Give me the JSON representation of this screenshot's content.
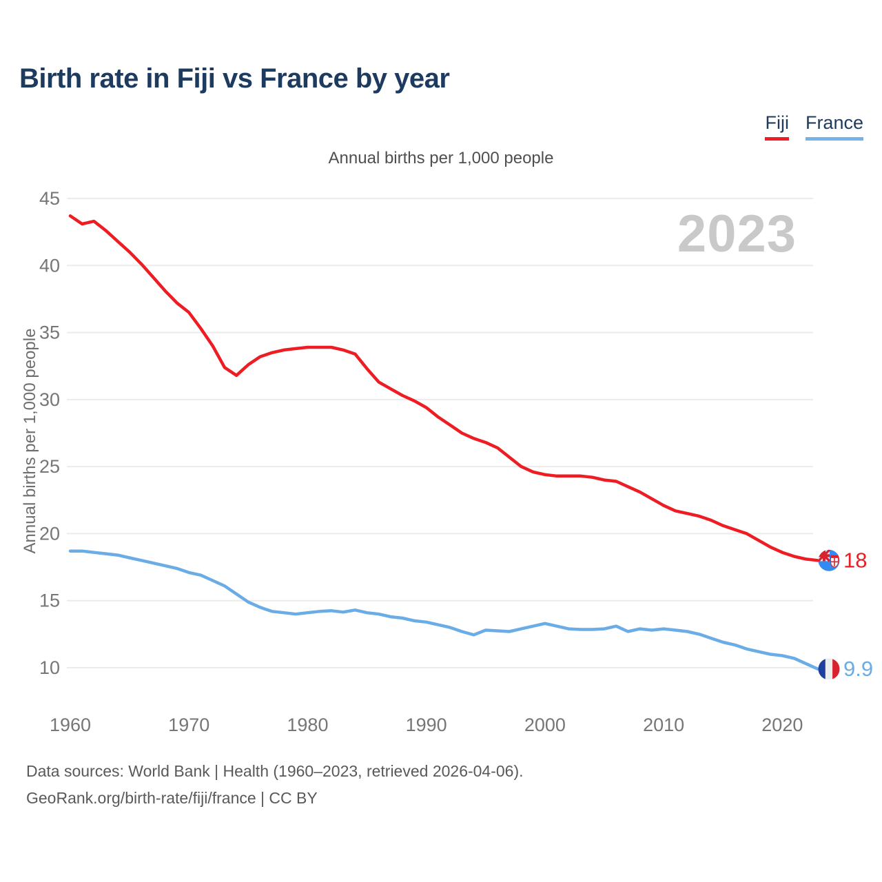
{
  "header": {
    "title": "Birth rate in Fiji vs France by year"
  },
  "legend": {
    "items": [
      {
        "label": "Fiji",
        "color": "#ee1c23"
      },
      {
        "label": "France",
        "color": "#74b3ea"
      }
    ]
  },
  "watermark": {
    "year": "2023"
  },
  "chart_data": {
    "type": "line",
    "title": "Birth rate in Fiji vs France by year",
    "subtitle": "Annual births per 1,000 people",
    "ylabel": "Annual births per 1,000 people",
    "xlabel": "",
    "grid": "horizontal",
    "legend_position": "top-right",
    "xlim": [
      1960,
      2023
    ],
    "ylim": [
      10,
      45
    ],
    "xticks": [
      1960,
      1970,
      1980,
      1990,
      2000,
      2010,
      2020
    ],
    "yticks": [
      10,
      15,
      20,
      25,
      30,
      35,
      40,
      45
    ],
    "x": [
      1960,
      1961,
      1962,
      1963,
      1964,
      1965,
      1966,
      1967,
      1968,
      1969,
      1970,
      1971,
      1972,
      1973,
      1974,
      1975,
      1976,
      1977,
      1978,
      1979,
      1980,
      1981,
      1982,
      1983,
      1984,
      1985,
      1986,
      1987,
      1988,
      1989,
      1990,
      1991,
      1992,
      1993,
      1994,
      1995,
      1996,
      1997,
      1998,
      1999,
      2000,
      2001,
      2002,
      2003,
      2004,
      2005,
      2006,
      2007,
      2008,
      2009,
      2010,
      2011,
      2012,
      2013,
      2014,
      2015,
      2016,
      2017,
      2018,
      2019,
      2020,
      2021,
      2022,
      2023
    ],
    "series": [
      {
        "name": "Fiji",
        "color": "#ee1c23",
        "end_label": "18",
        "flag": "fiji",
        "values": [
          43.7,
          43.1,
          43.3,
          42.6,
          41.8,
          41.0,
          40.1,
          39.1,
          38.1,
          37.2,
          36.5,
          35.3,
          34.0,
          32.4,
          31.8,
          32.6,
          33.2,
          33.5,
          33.7,
          33.8,
          33.9,
          33.9,
          33.9,
          33.7,
          33.4,
          32.3,
          31.3,
          30.8,
          30.3,
          29.9,
          29.4,
          28.7,
          28.1,
          27.5,
          27.1,
          26.8,
          26.4,
          25.7,
          25.0,
          24.6,
          24.4,
          24.3,
          24.3,
          24.3,
          24.2,
          24.0,
          23.9,
          23.5,
          23.1,
          22.6,
          22.1,
          21.7,
          21.5,
          21.3,
          21.0,
          20.6,
          20.3,
          20.0,
          19.5,
          19.0,
          18.6,
          18.3,
          18.1,
          18.0
        ]
      },
      {
        "name": "France",
        "color": "#6aace6",
        "end_label": "9.9",
        "flag": "france",
        "values": [
          18.7,
          18.7,
          18.6,
          18.5,
          18.4,
          18.2,
          18.0,
          17.8,
          17.6,
          17.4,
          17.1,
          16.9,
          16.5,
          16.1,
          15.5,
          14.9,
          14.5,
          14.2,
          14.1,
          14.0,
          14.1,
          14.2,
          14.25,
          14.15,
          14.3,
          14.1,
          14.0,
          13.8,
          13.7,
          13.5,
          13.4,
          13.2,
          13.0,
          12.7,
          12.45,
          12.8,
          12.75,
          12.7,
          12.9,
          13.1,
          13.3,
          13.1,
          12.9,
          12.85,
          12.85,
          12.9,
          13.1,
          12.7,
          12.9,
          12.8,
          12.9,
          12.8,
          12.7,
          12.5,
          12.2,
          11.9,
          11.7,
          11.4,
          11.2,
          11.0,
          10.9,
          10.7,
          10.3,
          9.9
        ]
      }
    ]
  },
  "theme": {
    "title_color": "#1d3a5f",
    "tick_color": "#767676",
    "grid_color": "#ebebeb",
    "watermark_color": "#c9c9c9",
    "fiji_flag_blue": "#338af3",
    "france_flag_blue": "#1e3f9e",
    "france_flag_red": "#d8232f"
  },
  "footer": {
    "line1": "Data sources: World Bank | Health (1960–2023, retrieved 2026-04-06).",
    "line2": "GeoRank.org/birth-rate/fiji/france | CC BY"
  }
}
